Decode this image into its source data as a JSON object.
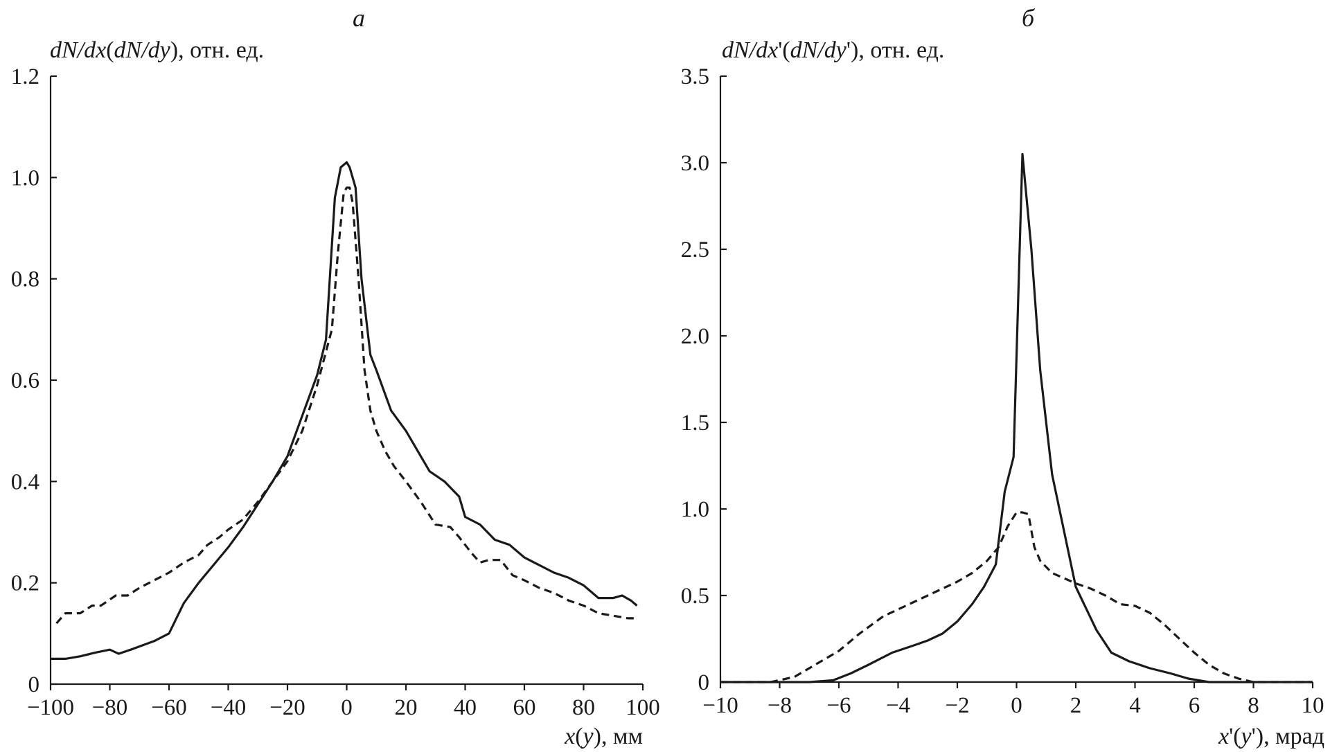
{
  "chart_data": [
    {
      "type": "line",
      "panel": "a",
      "ylabel_parts": [
        "dN/dx",
        "(",
        "dN/dy",
        "), отн. ед."
      ],
      "xlabel_parts": [
        "x",
        "(",
        "y",
        "), мм"
      ],
      "xlim": [
        -100,
        100
      ],
      "ylim": [
        0,
        1.2
      ],
      "xticks": [
        -100,
        -80,
        -60,
        -40,
        -20,
        0,
        20,
        40,
        60,
        80,
        100
      ],
      "xtick_labels": [
        "−100",
        "−80",
        "−60",
        "−40",
        "−20",
        "0",
        "20",
        "40",
        "60",
        "80",
        "100"
      ],
      "yticks": [
        0,
        0.2,
        0.4,
        0.6,
        0.8,
        1.0,
        1.2
      ],
      "ytick_labels": [
        "0",
        "0.2",
        "0.4",
        "0.6",
        "0.8",
        "1.0",
        "1.2"
      ],
      "series": [
        {
          "style": "solid",
          "x": [
            -100,
            -95,
            -90,
            -85,
            -80,
            -77,
            -72,
            -65,
            -60,
            -55,
            -50,
            -45,
            -40,
            -35,
            -30,
            -25,
            -20,
            -15,
            -10,
            -7,
            -4,
            -2,
            0,
            1,
            3,
            5,
            8,
            10,
            15,
            20,
            25,
            28,
            33,
            38,
            40,
            45,
            50,
            55,
            60,
            65,
            70,
            75,
            80,
            85,
            90,
            93,
            96,
            98
          ],
          "y": [
            0.05,
            0.05,
            0.055,
            0.062,
            0.068,
            0.06,
            0.07,
            0.085,
            0.1,
            0.16,
            0.2,
            0.235,
            0.27,
            0.31,
            0.355,
            0.4,
            0.45,
            0.53,
            0.61,
            0.68,
            0.96,
            1.02,
            1.03,
            1.02,
            0.98,
            0.8,
            0.65,
            0.62,
            0.54,
            0.5,
            0.45,
            0.42,
            0.4,
            0.37,
            0.33,
            0.315,
            0.285,
            0.275,
            0.25,
            0.235,
            0.22,
            0.21,
            0.195,
            0.17,
            0.17,
            0.175,
            0.165,
            0.155
          ]
        },
        {
          "style": "dashed",
          "x": [
            -98,
            -95,
            -90,
            -86,
            -83,
            -78,
            -74,
            -70,
            -65,
            -60,
            -55,
            -50,
            -47,
            -43,
            -40,
            -35,
            -30,
            -25,
            -20,
            -15,
            -10,
            -5,
            -3,
            -1,
            0,
            1,
            2,
            4,
            6,
            8,
            10,
            13,
            16,
            20,
            25,
            30,
            35,
            38,
            42,
            45,
            48,
            52,
            56,
            60,
            65,
            70,
            75,
            80,
            85,
            90,
            95,
            98
          ],
          "y": [
            0.12,
            0.14,
            0.14,
            0.155,
            0.155,
            0.175,
            0.175,
            0.19,
            0.205,
            0.22,
            0.24,
            0.255,
            0.275,
            0.29,
            0.305,
            0.325,
            0.36,
            0.4,
            0.44,
            0.5,
            0.59,
            0.7,
            0.85,
            0.97,
            0.98,
            0.98,
            0.95,
            0.8,
            0.62,
            0.54,
            0.5,
            0.46,
            0.43,
            0.4,
            0.36,
            0.315,
            0.31,
            0.29,
            0.26,
            0.24,
            0.245,
            0.245,
            0.215,
            0.205,
            0.19,
            0.18,
            0.165,
            0.155,
            0.14,
            0.135,
            0.13,
            0.13
          ]
        }
      ]
    },
    {
      "type": "line",
      "panel": "б",
      "ylabel_parts": [
        "dN/dx",
        "'(",
        "dN/dy",
        "'), отн. ед."
      ],
      "xlabel_parts": [
        "x",
        "'(",
        "y",
        "'), мрад"
      ],
      "xlim": [
        -10,
        10
      ],
      "ylim": [
        0,
        3.5
      ],
      "xticks": [
        -10,
        -8,
        -6,
        -4,
        -2,
        0,
        2,
        4,
        6,
        8,
        10
      ],
      "xtick_labels": [
        "−10",
        "−8",
        "−6",
        "−4",
        "−2",
        "0",
        "2",
        "4",
        "6",
        "8",
        "10"
      ],
      "yticks": [
        0,
        0.5,
        1.0,
        1.5,
        2.0,
        2.5,
        3.0,
        3.5
      ],
      "ytick_labels": [
        "0",
        "0.5",
        "1.0",
        "1.5",
        "2.0",
        "2.5",
        "3.0",
        "3.5"
      ],
      "series": [
        {
          "style": "solid",
          "x": [
            -10,
            -7,
            -6.2,
            -5.6,
            -5,
            -4.2,
            -3.5,
            -3,
            -2.5,
            -2,
            -1.5,
            -1.1,
            -0.7,
            -0.4,
            -0.1,
            0.2,
            0.5,
            0.8,
            1.2,
            2,
            2.7,
            3.2,
            3.8,
            4.5,
            5.2,
            5.8,
            6.5,
            10
          ],
          "y": [
            0,
            0,
            0.01,
            0.05,
            0.1,
            0.17,
            0.21,
            0.24,
            0.28,
            0.35,
            0.45,
            0.55,
            0.68,
            1.1,
            1.3,
            3.05,
            2.5,
            1.8,
            1.2,
            0.55,
            0.3,
            0.17,
            0.12,
            0.08,
            0.05,
            0.02,
            0,
            0
          ]
        },
        {
          "style": "dashed",
          "x": [
            -10,
            -8.3,
            -7.5,
            -6.8,
            -6,
            -5.3,
            -4.5,
            -4,
            -3.5,
            -3,
            -2.5,
            -2,
            -1.5,
            -1,
            -0.6,
            -0.3,
            0,
            0.2,
            0.4,
            0.6,
            0.8,
            1.2,
            2,
            2.5,
            3,
            3.5,
            4,
            4.5,
            5,
            5.5,
            6,
            6.5,
            7,
            7.5,
            8,
            10
          ],
          "y": [
            0,
            0,
            0.03,
            0.1,
            0.18,
            0.28,
            0.38,
            0.42,
            0.46,
            0.5,
            0.54,
            0.58,
            0.63,
            0.7,
            0.78,
            0.9,
            0.98,
            0.98,
            0.97,
            0.78,
            0.7,
            0.63,
            0.57,
            0.54,
            0.5,
            0.45,
            0.44,
            0.4,
            0.33,
            0.25,
            0.17,
            0.1,
            0.05,
            0.02,
            0,
            0
          ]
        }
      ]
    }
  ]
}
